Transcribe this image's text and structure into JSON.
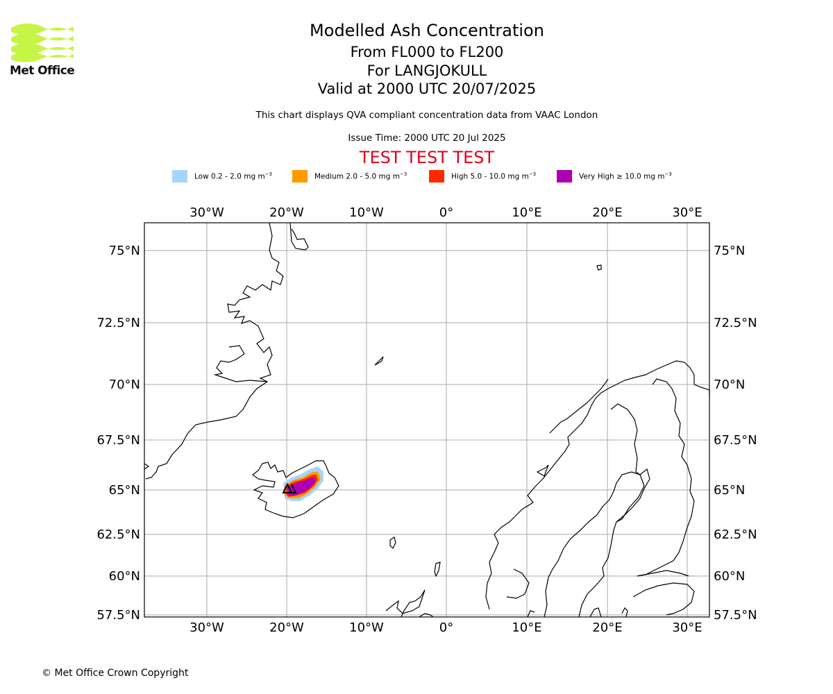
{
  "header": {
    "logo_text": "Met Office",
    "title": "Modelled Ash Concentration",
    "level_range": "From FL000 to FL200",
    "volcano": "For LANGJOKULL",
    "valid_time": "Valid at 2000 UTC 20/07/2025",
    "note": "This chart displays QVA compliant concentration data from VAAC London",
    "issue_time": "Issue Time: 2000 UTC 20 Jul 2025",
    "test_banner": "TEST TEST TEST"
  },
  "legend": [
    {
      "label": "Low 0.2 - 2.0 mg m",
      "color": "#a6d5fb"
    },
    {
      "label": "Medium 2.0 - 5.0 mg m",
      "color": "#ff9a00"
    },
    {
      "label": "High 5.0 - 10.0 mg m",
      "color": "#ff2a00"
    },
    {
      "label": "Very High ≥ 10.0 mg m",
      "color": "#ad00b2"
    }
  ],
  "legend_unit_exponent": "−3",
  "map": {
    "lon_labels": [
      "30°W",
      "20°W",
      "10°W",
      "0°",
      "10°E",
      "20°E",
      "30°E"
    ],
    "lat_labels": [
      "75°N",
      "72.5°N",
      "70°N",
      "67.5°N",
      "65°N",
      "62.5°N",
      "60°N",
      "57.5°N"
    ],
    "grid_color": "#aaaaaa"
  },
  "footer": {
    "copyright": "© Met Office Crown Copyright"
  }
}
